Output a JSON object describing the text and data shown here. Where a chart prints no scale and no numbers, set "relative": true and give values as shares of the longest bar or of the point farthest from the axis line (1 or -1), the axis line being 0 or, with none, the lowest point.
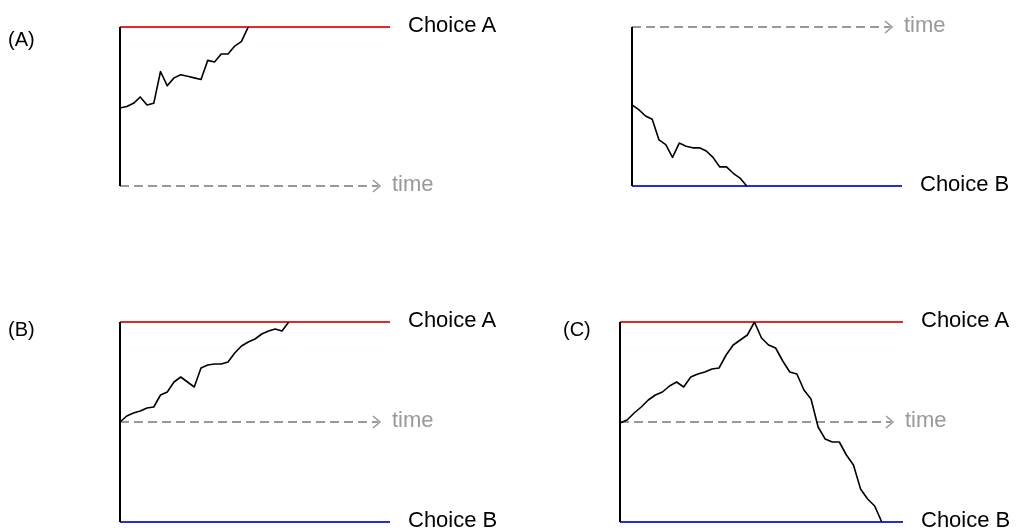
{
  "chart_data": [
    {
      "type": "line",
      "title": "(A)",
      "relative": true,
      "categories": [
        null,
        null,
        null,
        null,
        null,
        null,
        null,
        null,
        null,
        null,
        null,
        null,
        null,
        null,
        null,
        null,
        null,
        null,
        null,
        null,
        null,
        null,
        null,
        null,
        null,
        null,
        null,
        null,
        null,
        null,
        null,
        null,
        null,
        null,
        null,
        null,
        null,
        null,
        null,
        null,
        null
      ],
      "series": [
        {
          "color": "#000000",
          "values": [
            0.49,
            0.5,
            0.52,
            0.56,
            0.51,
            0.52,
            0.72,
            0.63,
            0.68,
            0.7,
            0.69,
            0.68,
            0.67,
            0.79,
            0.78,
            0.83,
            0.83,
            0.88,
            0.91,
            1,
            null,
            null,
            null,
            null,
            null,
            null,
            null,
            null,
            null,
            null,
            null,
            null,
            null,
            null,
            null,
            null,
            null,
            null,
            null,
            null,
            null
          ]
        }
      ],
      "ref_lines": [
        {
          "axis": "y",
          "value": 1,
          "label": "Choice A",
          "color": "#e8262a"
        },
        {
          "axis": "y",
          "value": 0,
          "label": "time",
          "color": "#999999",
          "line_style": "dashed"
        }
      ]
    },
    {
      "type": "line",
      "relative": true,
      "categories": [
        null,
        null,
        null,
        null,
        null,
        null,
        null,
        null,
        null,
        null,
        null,
        null,
        null,
        null,
        null,
        null,
        null,
        null,
        null,
        null,
        null,
        null,
        null,
        null,
        null,
        null,
        null,
        null,
        null,
        null,
        null,
        null,
        null,
        null,
        null,
        null,
        null,
        null,
        null,
        null,
        null
      ],
      "series": [
        {
          "color": "#000000",
          "values": [
            -0.49,
            -0.52,
            -0.56,
            -0.58,
            -0.71,
            -0.74,
            -0.82,
            -0.73,
            -0.75,
            -0.76,
            -0.76,
            -0.78,
            -0.82,
            -0.88,
            -0.88,
            -0.92,
            -0.95,
            -1,
            null,
            null,
            null,
            null,
            null,
            null,
            null,
            null,
            null,
            null,
            null,
            null,
            null,
            null,
            null,
            null,
            null,
            null,
            null,
            null,
            null,
            null,
            null
          ]
        }
      ],
      "ref_lines": [
        {
          "axis": "y",
          "value": -1,
          "label": "Choice B",
          "color": "#2a2ad8"
        },
        {
          "axis": "y",
          "value": 0,
          "label": "time",
          "color": "#999999",
          "line_style": "dashed"
        }
      ]
    },
    {
      "type": "line",
      "title": "(B)",
      "relative": true,
      "categories": [
        null,
        null,
        null,
        null,
        null,
        null,
        null,
        null,
        null,
        null,
        null,
        null,
        null,
        null,
        null,
        null,
        null,
        null,
        null,
        null,
        null,
        null,
        null,
        null,
        null,
        null,
        null,
        null,
        null,
        null,
        null,
        null,
        null,
        null,
        null,
        null,
        null,
        null,
        null,
        null,
        null
      ],
      "series": [
        {
          "color": "#000000",
          "values": [
            0,
            0.06,
            0.09,
            0.11,
            0.14,
            0.15,
            0.27,
            0.3,
            0.4,
            0.45,
            0.4,
            0.35,
            0.54,
            0.57,
            0.58,
            0.58,
            0.6,
            0.69,
            0.76,
            0.8,
            0.83,
            0.88,
            0.91,
            0.93,
            0.91,
            1,
            null,
            null,
            null,
            null,
            null,
            null,
            null,
            null,
            null,
            null,
            null,
            null,
            null,
            null,
            null
          ]
        }
      ],
      "ref_lines": [
        {
          "axis": "y",
          "value": 1,
          "label": "Choice A",
          "color": "#e8262a"
        },
        {
          "axis": "y",
          "value": -1,
          "label": "Choice B",
          "color": "#2a2ad8"
        },
        {
          "axis": "y",
          "value": 0,
          "label": "time",
          "color": "#999999",
          "line_style": "dashed"
        }
      ]
    },
    {
      "type": "line",
      "title": "(C)",
      "relative": true,
      "categories": [
        null,
        null,
        null,
        null,
        null,
        null,
        null,
        null,
        null,
        null,
        null,
        null,
        null,
        null,
        null,
        null,
        null,
        null,
        null,
        null,
        null,
        null,
        null,
        null,
        null,
        null,
        null,
        null,
        null,
        null,
        null,
        null,
        null,
        null,
        null,
        null,
        null,
        null,
        null,
        null,
        null
      ],
      "series": [
        {
          "color": "#000000",
          "values": [
            -0.01,
            0.02,
            0.09,
            0.15,
            0.22,
            0.27,
            0.3,
            0.36,
            0.4,
            0.35,
            0.45,
            0.48,
            0.5,
            0.53,
            0.54,
            0.67,
            0.77,
            0.82,
            0.87,
            1,
            0.84,
            0.77,
            0.74,
            0.61,
            0.5,
            0.48,
            0.32,
            0.23,
            -0.05,
            -0.17,
            -0.2,
            -0.2,
            -0.33,
            -0.43,
            -0.67,
            -0.77,
            -0.84,
            -1,
            null,
            null,
            null
          ]
        }
      ],
      "ref_lines": [
        {
          "axis": "y",
          "value": 1,
          "label": "Choice A",
          "color": "#e8262a"
        },
        {
          "axis": "y",
          "value": -1,
          "label": "Choice B",
          "color": "#2a2ad8"
        },
        {
          "axis": "y",
          "value": 0,
          "label": "time",
          "color": "#999999",
          "line_style": "dashed"
        }
      ]
    }
  ]
}
